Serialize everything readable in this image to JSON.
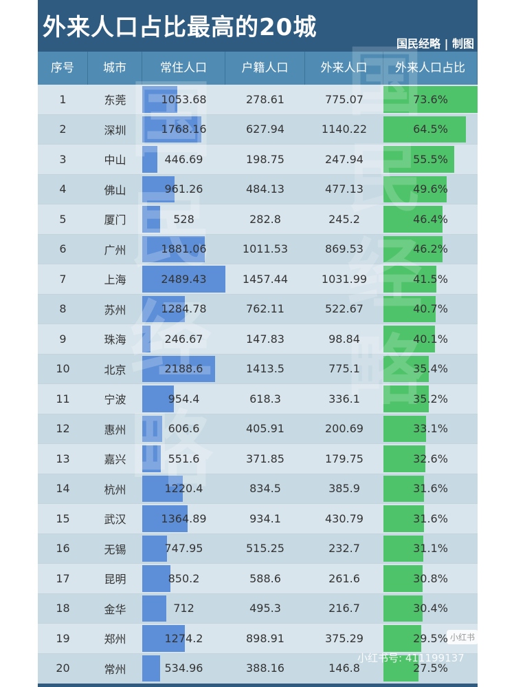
{
  "title": "外来人口占比最高的20城",
  "credit": "国民经略 | 制图",
  "watermark": "国民经略",
  "social_badge": "小红书",
  "social_id": "小红书号: 411199137",
  "colors": {
    "header_bg": "#2f5b80",
    "column_header_bg": "#4f8bb3",
    "row_light": "#d8e5ec",
    "row_dark": "#c7d9e3",
    "resident_bar": "#5d8fd8",
    "share_bar": "#4fc36a"
  },
  "chart_data": {
    "type": "table",
    "title": "外来人口占比最高的20城",
    "columns": [
      "序号",
      "城市",
      "常住人口",
      "户籍人口",
      "外来人口",
      "外来人口占比"
    ],
    "bar_columns": [
      "常住人口",
      "外来人口占比"
    ],
    "rows": [
      [
        "1",
        "东莞",
        "1053.68",
        "278.61",
        "775.07",
        "73.6%"
      ],
      [
        "2",
        "深圳",
        "1768.16",
        "627.94",
        "1140.22",
        "64.5%"
      ],
      [
        "3",
        "中山",
        "446.69",
        "198.75",
        "247.94",
        "55.5%"
      ],
      [
        "4",
        "佛山",
        "961.26",
        "484.13",
        "477.13",
        "49.6%"
      ],
      [
        "5",
        "厦门",
        "528",
        "282.8",
        "245.2",
        "46.4%"
      ],
      [
        "6",
        "广州",
        "1881.06",
        "1011.53",
        "869.53",
        "46.2%"
      ],
      [
        "7",
        "上海",
        "2489.43",
        "1457.44",
        "1031.99",
        "41.5%"
      ],
      [
        "8",
        "苏州",
        "1284.78",
        "762.11",
        "522.67",
        "40.7%"
      ],
      [
        "9",
        "珠海",
        "246.67",
        "147.83",
        "98.84",
        "40.1%"
      ],
      [
        "10",
        "北京",
        "2188.6",
        "1413.5",
        "775.1",
        "35.4%"
      ],
      [
        "11",
        "宁波",
        "954.4",
        "618.3",
        "336.1",
        "35.2%"
      ],
      [
        "12",
        "惠州",
        "606.6",
        "405.91",
        "200.69",
        "33.1%"
      ],
      [
        "13",
        "嘉兴",
        "551.6",
        "371.85",
        "179.75",
        "32.6%"
      ],
      [
        "14",
        "杭州",
        "1220.4",
        "834.5",
        "385.9",
        "31.6%"
      ],
      [
        "15",
        "武汉",
        "1364.89",
        "934.1",
        "430.79",
        "31.6%"
      ],
      [
        "16",
        "无锡",
        "747.95",
        "515.25",
        "232.7",
        "31.1%"
      ],
      [
        "17",
        "昆明",
        "850.2",
        "588.6",
        "261.6",
        "30.8%"
      ],
      [
        "18",
        "金华",
        "712",
        "495.3",
        "216.7",
        "30.4%"
      ],
      [
        "19",
        "郑州",
        "1274.2",
        "898.91",
        "375.29",
        "29.5%"
      ],
      [
        "20",
        "常州",
        "534.96",
        "388.16",
        "146.8",
        "27.5%"
      ]
    ],
    "resident_bar_max": 2489.43,
    "share_bar_max": 73.6
  }
}
